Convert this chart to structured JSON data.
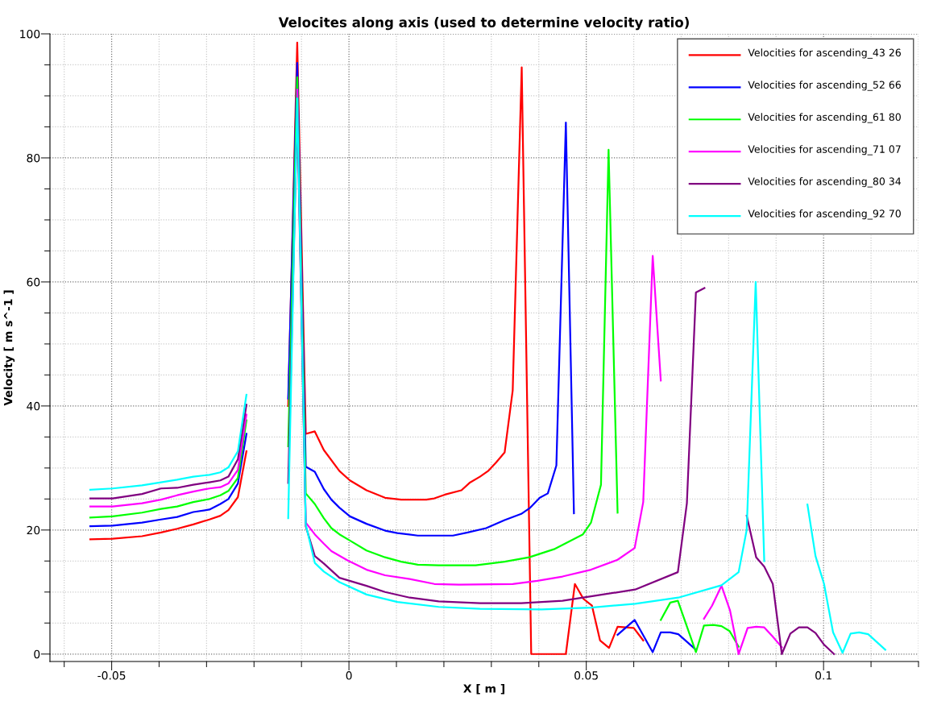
{
  "chart_data": {
    "type": "line",
    "title": "Velocites along axis (used to determine velocity ratio)",
    "xlabel": "X [ m ]",
    "ylabel": "Velocity [ m s^-1 ]",
    "xlim": [
      -0.063,
      0.12
    ],
    "ylim": [
      -1.2,
      100
    ],
    "xticks": [
      {
        "value": -0.06,
        "label": null
      },
      -0.05,
      {
        "value": -0.04,
        "label": null
      },
      {
        "value": -0.03,
        "label": null
      },
      {
        "value": -0.02,
        "label": null
      },
      {
        "value": -0.01,
        "label": null
      },
      0,
      {
        "value": 0.01,
        "label": null
      },
      {
        "value": 0.02,
        "label": null
      },
      {
        "value": 0.03,
        "label": null
      },
      {
        "value": 0.04,
        "label": null
      },
      0.05,
      {
        "value": 0.06,
        "label": null
      },
      {
        "value": 0.07,
        "label": null
      },
      {
        "value": 0.08,
        "label": null
      },
      {
        "value": 0.09,
        "label": null
      },
      0.1,
      {
        "value": 0.11,
        "label": null
      },
      {
        "value": 0.12,
        "label": null
      }
    ],
    "yticks": [
      0,
      {
        "value": 5,
        "label": null
      },
      {
        "value": 10,
        "label": null
      },
      {
        "value": 15,
        "label": null
      },
      20,
      {
        "value": 25,
        "label": null
      },
      {
        "value": 30,
        "label": null
      },
      {
        "value": 35,
        "label": null
      },
      40,
      {
        "value": 45,
        "label": null
      },
      {
        "value": 50,
        "label": null
      },
      {
        "value": 55,
        "label": null
      },
      60,
      {
        "value": 65,
        "label": null
      },
      {
        "value": 70,
        "label": null
      },
      {
        "value": 75,
        "label": null
      },
      80,
      {
        "value": 85,
        "label": null
      },
      {
        "value": 90,
        "label": null
      },
      {
        "value": 95,
        "label": null
      },
      100
    ],
    "grid": true,
    "legend": "top right",
    "marker": "none",
    "line_style": "solid",
    "series": [
      {
        "name": "Velocities for ascending_43 26",
        "color": "#ff0000",
        "x": [
          -0.0545,
          -0.0498,
          -0.0436,
          -0.0396,
          -0.0362,
          -0.0328,
          -0.0294,
          -0.0271,
          -0.0254,
          -0.0234,
          -0.0216,
          -0.017,
          -0.0128,
          -0.0109,
          -0.0091,
          -0.0072,
          -0.0053,
          -0.002,
          0.0002,
          0.0037,
          0.0076,
          0.011,
          0.0163,
          0.018,
          0.0202,
          0.0237,
          0.0254,
          0.0276,
          0.0293,
          0.031,
          0.0328,
          0.0345,
          0.0364,
          0.0384,
          0.0457,
          0.0476,
          0.0494,
          0.0512,
          0.0529,
          0.0548,
          0.0566,
          0.06,
          0.062
        ],
        "values": [
          18.5,
          18.6,
          19.0,
          19.6,
          20.2,
          20.9,
          21.7,
          22.3,
          23.2,
          25.3,
          32.7,
          null,
          40.0,
          98.6,
          35.5,
          35.9,
          32.9,
          29.5,
          28.0,
          26.4,
          25.2,
          24.9,
          24.9,
          25.1,
          25.7,
          26.4,
          27.6,
          28.6,
          29.5,
          30.9,
          32.5,
          42.5,
          94.6,
          0,
          0,
          11.3,
          8.9,
          7.8,
          2.2,
          1.0,
          4.4,
          4.2,
          2.2
        ]
      },
      {
        "name": "Velocities for ascending_52 66",
        "color": "#0000ff",
        "x": [
          -0.0545,
          -0.0498,
          -0.0436,
          -0.0396,
          -0.0362,
          -0.0328,
          -0.0294,
          -0.0271,
          -0.0254,
          -0.0234,
          -0.0216,
          -0.017,
          -0.0128,
          -0.0109,
          -0.0091,
          -0.0072,
          -0.0053,
          -0.0037,
          -0.002,
          0.0002,
          0.0037,
          0.0076,
          0.0102,
          0.0145,
          0.0189,
          0.0219,
          0.025,
          0.0289,
          0.0328,
          0.0363,
          0.0382,
          0.0402,
          0.0419,
          0.0437,
          0.0457,
          0.0474,
          0.052,
          0.0566,
          0.0602,
          0.064,
          0.0657,
          0.0677,
          0.0694,
          0.0731
        ],
        "values": [
          20.6,
          20.7,
          21.2,
          21.7,
          22.1,
          22.9,
          23.3,
          24.2,
          25.0,
          27.5,
          35.5,
          null,
          41.2,
          95.3,
          30.2,
          29.4,
          26.6,
          24.9,
          23.6,
          22.2,
          21.0,
          19.9,
          19.5,
          19.1,
          19.1,
          19.1,
          19.6,
          20.3,
          21.6,
          22.6,
          23.6,
          25.2,
          25.9,
          30.4,
          85.7,
          22.7,
          null,
          3.1,
          5.5,
          0.3,
          3.5,
          3.5,
          3.2,
          0.7
        ]
      },
      {
        "name": "Velocities for ascending_61 80",
        "color": "#00ff00",
        "x": [
          -0.0545,
          -0.0498,
          -0.0436,
          -0.0396,
          -0.0362,
          -0.0328,
          -0.0294,
          -0.0271,
          -0.0254,
          -0.0234,
          -0.0216,
          -0.017,
          -0.0128,
          -0.0109,
          -0.0091,
          -0.0072,
          -0.0053,
          -0.0037,
          -0.002,
          0.0002,
          0.0037,
          0.0076,
          0.011,
          0.0145,
          0.0189,
          0.0267,
          0.0328,
          0.038,
          0.0432,
          0.0493,
          0.051,
          0.0531,
          0.0547,
          0.0566,
          0.061,
          0.0657,
          0.0677,
          0.0693,
          0.0731,
          0.0748,
          0.0768,
          0.0785,
          0.0802,
          0.0821
        ],
        "values": [
          22.0,
          22.2,
          22.8,
          23.4,
          23.8,
          24.5,
          25.0,
          25.6,
          26.3,
          28.4,
          37.7,
          null,
          33.5,
          93.0,
          25.9,
          24.2,
          21.9,
          20.3,
          19.3,
          18.3,
          16.7,
          15.6,
          14.9,
          14.4,
          14.3,
          14.3,
          14.9,
          15.6,
          16.9,
          19.3,
          21.2,
          27.3,
          81.3,
          22.8,
          null,
          5.5,
          8.3,
          8.6,
          0.3,
          4.6,
          4.7,
          4.5,
          3.7,
          1.2
        ]
      },
      {
        "name": "Velocities for ascending_71 07",
        "color": "#ff00ff",
        "x": [
          -0.0545,
          -0.0498,
          -0.0436,
          -0.0396,
          -0.0362,
          -0.0328,
          -0.0294,
          -0.0271,
          -0.0254,
          -0.0234,
          -0.0216,
          -0.017,
          -0.0128,
          -0.0109,
          -0.0091,
          -0.0072,
          -0.0053,
          -0.0037,
          -0.0003,
          0.0037,
          0.0076,
          0.0128,
          0.018,
          0.0232,
          0.0345,
          0.0397,
          0.045,
          0.051,
          0.0566,
          0.0602,
          0.062,
          0.064,
          0.0657,
          0.07,
          0.0748,
          0.0765,
          0.0785,
          0.0803,
          0.0821,
          0.084,
          0.0858,
          0.0875,
          0.0892,
          0.0912
        ],
        "values": [
          23.8,
          23.8,
          24.3,
          24.9,
          25.6,
          26.2,
          26.7,
          26.9,
          27.5,
          29.7,
          38.6,
          null,
          null,
          91,
          21.2,
          19.3,
          17.8,
          16.6,
          15.1,
          13.6,
          12.7,
          12.1,
          11.3,
          11.2,
          11.3,
          11.8,
          12.5,
          13.6,
          15.2,
          17.1,
          24.5,
          64.2,
          44.1,
          null,
          5.7,
          7.8,
          11.0,
          7.0,
          0,
          4.2,
          4.4,
          4.3,
          2.9,
          1.1
        ]
      },
      {
        "name": "Velocities for ascending_80 34",
        "color": "#800080",
        "x": [
          -0.0545,
          -0.0498,
          -0.0436,
          -0.0396,
          -0.0362,
          -0.0328,
          -0.0294,
          -0.0271,
          -0.0254,
          -0.0234,
          -0.0216,
          -0.017,
          -0.0128,
          -0.0109,
          -0.0091,
          -0.0072,
          -0.0053,
          -0.002,
          0.0037,
          0.0076,
          0.0128,
          0.0189,
          0.0276,
          0.0363,
          0.045,
          0.051,
          0.0603,
          0.0693,
          0.0712,
          0.0731,
          0.0749,
          0.079,
          0.0838,
          0.0858,
          0.0875,
          0.0893,
          0.0912,
          0.093,
          0.0948,
          0.0966,
          0.0983,
          0.1,
          0.1022
        ],
        "values": [
          25.1,
          25.1,
          25.8,
          26.7,
          26.8,
          27.3,
          27.7,
          28.0,
          28.6,
          31.4,
          40.2,
          null,
          27.6,
          88,
          20.6,
          15.8,
          14.6,
          12.3,
          11.0,
          10.0,
          9.1,
          8.5,
          8.2,
          8.2,
          8.6,
          9.3,
          10.4,
          13.2,
          24.3,
          58.3,
          59.0,
          null,
          22.3,
          15.6,
          14.1,
          11.3,
          0,
          3.3,
          4.3,
          4.3,
          3.4,
          1.6,
          0
        ]
      },
      {
        "name": "Velocities for ascending_92 70",
        "color": "#00ffff",
        "x": [
          -0.0545,
          -0.0498,
          -0.0436,
          -0.0396,
          -0.0362,
          -0.0328,
          -0.0294,
          -0.0271,
          -0.0254,
          -0.0234,
          -0.0216,
          -0.017,
          -0.0128,
          -0.0109,
          -0.0091,
          -0.0072,
          -0.0053,
          -0.002,
          0.0037,
          0.0102,
          0.0189,
          0.0276,
          0.0406,
          0.051,
          0.0603,
          0.0694,
          0.0785,
          0.0821,
          0.0838,
          0.0857,
          0.0875,
          0.092,
          0.0966,
          0.0983,
          0.1001,
          0.102,
          0.104,
          0.1057,
          0.1075,
          0.1094,
          0.113
        ],
        "values": [
          26.5,
          26.7,
          27.2,
          27.7,
          28.1,
          28.6,
          28.9,
          29.3,
          30.1,
          32.7,
          41.8,
          null,
          21.9,
          89.6,
          20.9,
          14.7,
          13.3,
          11.6,
          9.6,
          8.4,
          7.6,
          7.3,
          7.2,
          7.5,
          8.1,
          9.1,
          11.1,
          13.2,
          20.0,
          60.0,
          15.0,
          null,
          24.1,
          15.8,
          11.3,
          3.5,
          0.2,
          3.3,
          3.5,
          3.2,
          0.7
        ]
      }
    ]
  }
}
